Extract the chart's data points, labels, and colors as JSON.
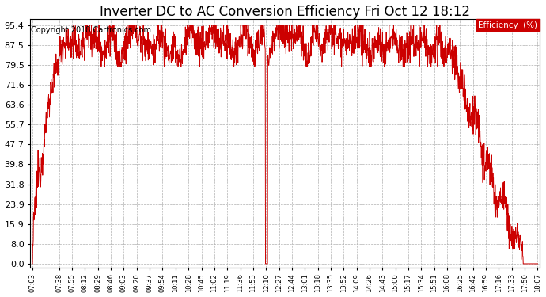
{
  "title": "Inverter DC to AC Conversion Efficiency Fri Oct 12 18:12",
  "copyright": "Copyright 2018 Cartronics.com",
  "legend_label": "Efficiency  (%)",
  "line_color": "#cc0000",
  "legend_bg": "#cc0000",
  "legend_text_color": "#ffffff",
  "bg_color": "#ffffff",
  "grid_color": "#b0b0b0",
  "title_fontsize": 12,
  "copyright_fontsize": 7,
  "ytick_labels": [
    "0.0",
    "8.0",
    "15.9",
    "23.9",
    "31.8",
    "39.8",
    "47.7",
    "55.7",
    "63.6",
    "71.6",
    "79.5",
    "87.5",
    "95.4"
  ],
  "ytick_values": [
    0.0,
    8.0,
    15.9,
    23.9,
    31.8,
    39.8,
    47.7,
    55.7,
    63.6,
    71.6,
    79.5,
    87.5,
    95.4
  ],
  "ymin": -1.5,
  "ymax": 98.0,
  "xtick_labels": [
    "07:03",
    "07:38",
    "07:55",
    "08:12",
    "08:29",
    "08:46",
    "09:03",
    "09:20",
    "09:37",
    "09:54",
    "10:11",
    "10:28",
    "10:45",
    "11:02",
    "11:19",
    "11:36",
    "11:53",
    "12:10",
    "12:27",
    "12:44",
    "13:01",
    "13:18",
    "13:35",
    "13:52",
    "14:09",
    "14:26",
    "14:43",
    "15:00",
    "15:17",
    "15:34",
    "15:51",
    "16:08",
    "16:25",
    "16:42",
    "16:59",
    "17:16",
    "17:33",
    "17:50",
    "18:07"
  ]
}
